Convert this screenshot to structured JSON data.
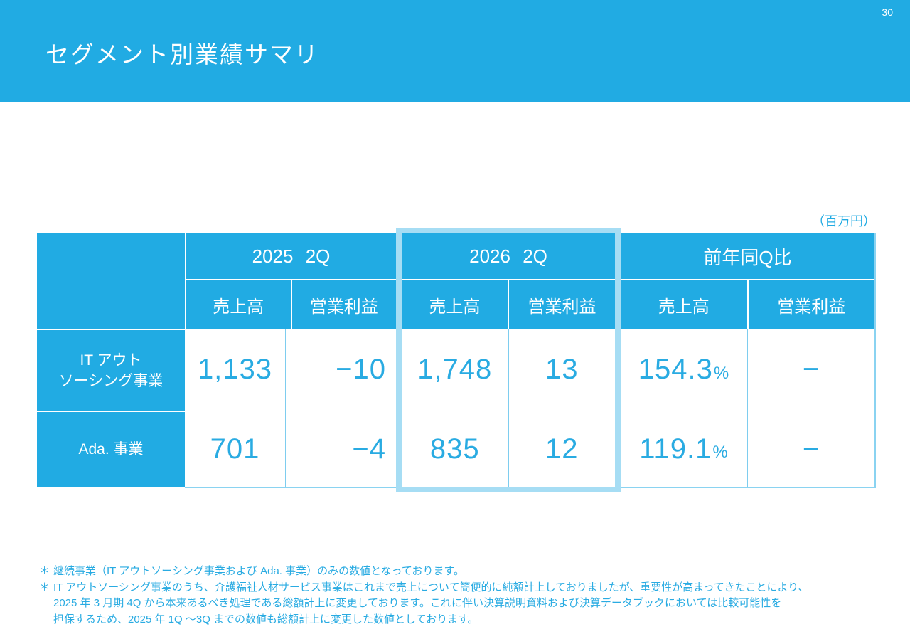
{
  "page_number": "30",
  "title": "セグメント別業績サマリ",
  "unit_label": "（百万円）",
  "colors": {
    "primary_blue": "#21abe3",
    "highlight_pale_blue": "#a6ddf4",
    "cell_border_blue": "#7ecdef",
    "text_blue": "#29abe2"
  },
  "table": {
    "groups": [
      {
        "label": "2025 2Q",
        "highlight": false
      },
      {
        "label": "2026 2Q",
        "highlight": true
      },
      {
        "label": "前年同Q比",
        "highlight": false
      }
    ],
    "subheaders": [
      "売上高",
      "営業利益"
    ],
    "rows": [
      {
        "label_lines": [
          "IT アウト",
          "ソーシング事業"
        ],
        "cells": [
          {
            "value": "1,133",
            "suffix": ""
          },
          {
            "value": "−10",
            "suffix": ""
          },
          {
            "value": "1,748",
            "suffix": ""
          },
          {
            "value": "13",
            "suffix": ""
          },
          {
            "value": "154.3",
            "suffix": "%"
          },
          {
            "value": "−",
            "suffix": ""
          }
        ]
      },
      {
        "label_lines": [
          "Ada. 事業"
        ],
        "cells": [
          {
            "value": "701",
            "suffix": ""
          },
          {
            "value": "−4",
            "suffix": ""
          },
          {
            "value": "835",
            "suffix": ""
          },
          {
            "value": "12",
            "suffix": ""
          },
          {
            "value": "119.1",
            "suffix": "%"
          },
          {
            "value": "−",
            "suffix": ""
          }
        ]
      }
    ]
  },
  "footnotes": [
    {
      "marker": "＊",
      "lines": [
        "継続事業（IT アウトソーシング事業および Ada. 事業）のみの数値となっております。"
      ]
    },
    {
      "marker": "＊",
      "lines": [
        "IT アウトソーシング事業のうち、介護福祉人材サービス事業はこれまで売上について簡便的に純額計上しておりましたが、重要性が高まってきたことにより、",
        "2025 年 3 月期 4Q から本来あるべき処理である総額計上に変更しております。これに伴い決算説明資料および決算データブックにおいては比較可能性を",
        "担保するため、2025 年 1Q ～3Q までの数値も総額計上に変更した数値としております。"
      ]
    }
  ]
}
